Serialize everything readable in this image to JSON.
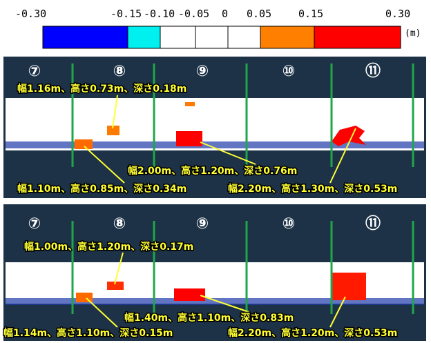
{
  "legend": {
    "ticks": [
      "-0.30",
      "-0.15",
      "-0.10",
      "-0.05",
      "0",
      "0.05",
      "0.15",
      "0.30"
    ],
    "unit": "(m)"
  },
  "panels": [
    {
      "sections": [
        "⑦",
        "⑧",
        "⑨",
        "⑩",
        "⑪"
      ],
      "annotations": [
        "幅1.16m、高さ0.73m、深さ0.18m",
        "幅2.00m、高さ1.20m、深さ0.76m",
        "幅1.10m、高さ0.85m、深さ0.34m",
        "幅2.20m、高さ1.30m、深さ0.53m"
      ]
    },
    {
      "sections": [
        "⑦",
        "⑧",
        "⑨",
        "⑩",
        "⑪"
      ],
      "annotations": [
        "幅1.00m、高さ1.20m、深さ0.17m",
        "幅1.40m、高さ1.10m、深さ0.83m",
        "幅1.14m、高さ1.10m、深さ0.15m",
        "幅2.20m、高さ1.20m、深さ0.53m"
      ]
    }
  ]
}
